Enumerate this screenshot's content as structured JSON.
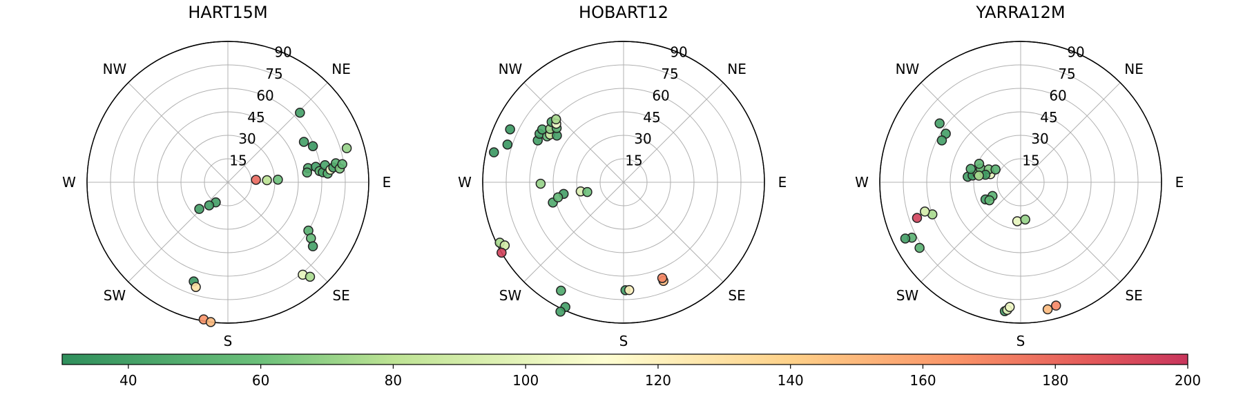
{
  "chart_data": {
    "type": "scatter",
    "projection": "polar",
    "radial_ticks": [
      "15",
      "30",
      "45",
      "60",
      "75",
      "90"
    ],
    "compass_labels": {
      "N": "",
      "NE": "NE",
      "E": "E",
      "SE": "SE",
      "S": "S",
      "SW": "SW",
      "W": "W",
      "NW": "NW"
    },
    "colormap": {
      "name": "RdYlGn_r",
      "min": 30,
      "max": 200,
      "ticks": [
        "40",
        "60",
        "80",
        "100",
        "120",
        "140",
        "160",
        "180",
        "200"
      ],
      "tick_values": [
        40,
        60,
        80,
        100,
        120,
        140,
        160,
        180,
        200
      ],
      "stops": [
        {
          "v": 30,
          "color": "#2f8f5c"
        },
        {
          "v": 60,
          "color": "#6cc07a"
        },
        {
          "v": 80,
          "color": "#bde394"
        },
        {
          "v": 112,
          "color": "#fefed2"
        },
        {
          "v": 140,
          "color": "#fed189"
        },
        {
          "v": 165,
          "color": "#fa9468"
        },
        {
          "v": 185,
          "color": "#e45a5a"
        },
        {
          "v": 200,
          "color": "#c8355c"
        }
      ]
    },
    "panels": [
      {
        "title": "HART15M",
        "points": [
          {
            "az": 80,
            "el": 52,
            "v": 45
          },
          {
            "az": 83,
            "el": 51,
            "v": 48
          },
          {
            "az": 80,
            "el": 57,
            "v": 40
          },
          {
            "az": 83,
            "el": 59,
            "v": 55
          },
          {
            "az": 84,
            "el": 61,
            "v": 45
          },
          {
            "az": 80,
            "el": 63,
            "v": 42
          },
          {
            "az": 85,
            "el": 64,
            "v": 50
          },
          {
            "az": 83,
            "el": 66,
            "v": 108
          },
          {
            "az": 82,
            "el": 68,
            "v": 40
          },
          {
            "az": 80,
            "el": 70,
            "v": 50
          },
          {
            "az": 83,
            "el": 72,
            "v": 65
          },
          {
            "az": 81,
            "el": 74,
            "v": 55
          },
          {
            "az": 74,
            "el": 79,
            "v": 70
          },
          {
            "az": 67,
            "el": 59,
            "v": 35
          },
          {
            "az": 62,
            "el": 55,
            "v": 40
          },
          {
            "az": 46,
            "el": 64,
            "v": 40
          },
          {
            "az": 85,
            "el": 18,
            "v": 180
          },
          {
            "az": 87,
            "el": 25,
            "v": 80
          },
          {
            "az": 87,
            "el": 32,
            "v": 60
          },
          {
            "az": 121,
            "el": 60,
            "v": 50
          },
          {
            "az": 124,
            "el": 64,
            "v": 55
          },
          {
            "az": 127,
            "el": 68,
            "v": 40
          },
          {
            "az": 141,
            "el": 76,
            "v": 100
          },
          {
            "az": 139,
            "el": 80,
            "v": 75
          },
          {
            "az": 211,
            "el": 15,
            "v": 40
          },
          {
            "az": 219,
            "el": 19,
            "v": 40
          },
          {
            "az": 227,
            "el": 25,
            "v": 40
          },
          {
            "az": 199,
            "el": 67,
            "v": 35
          },
          {
            "az": 197,
            "el": 70,
            "v": 130
          },
          {
            "az": 190,
            "el": 89,
            "v": 165
          },
          {
            "az": 187,
            "el": 90,
            "v": 150
          }
        ]
      },
      {
        "title": "HOBART12",
        "points": [
          {
            "az": 295,
            "el": 80,
            "v": 35
          },
          {
            "az": 283,
            "el": 85,
            "v": 35
          },
          {
            "az": 288,
            "el": 78,
            "v": 35
          },
          {
            "az": 296,
            "el": 61,
            "v": 40
          },
          {
            "az": 300,
            "el": 62,
            "v": 40
          },
          {
            "az": 301,
            "el": 57,
            "v": 55
          },
          {
            "az": 303,
            "el": 56,
            "v": 90
          },
          {
            "az": 303,
            "el": 62,
            "v": 45
          },
          {
            "az": 305,
            "el": 52,
            "v": 40
          },
          {
            "az": 306,
            "el": 58,
            "v": 70
          },
          {
            "az": 309,
            "el": 55,
            "v": 50
          },
          {
            "az": 310,
            "el": 60,
            "v": 45
          },
          {
            "az": 311,
            "el": 57,
            "v": 110
          },
          {
            "az": 313,
            "el": 59,
            "v": 75
          },
          {
            "az": 254,
            "el": 47,
            "v": 45
          },
          {
            "az": 259,
            "el": 39,
            "v": 40
          },
          {
            "az": 257,
            "el": 43,
            "v": 55
          },
          {
            "az": 258,
            "el": 28,
            "v": 95
          },
          {
            "az": 255,
            "el": 24,
            "v": 60
          },
          {
            "az": 269,
            "el": 53,
            "v": 70
          },
          {
            "az": 244,
            "el": 88,
            "v": 75
          },
          {
            "az": 242,
            "el": 86,
            "v": 90
          },
          {
            "az": 240,
            "el": 90,
            "v": 195
          },
          {
            "az": 210,
            "el": 80,
            "v": 45
          },
          {
            "az": 205,
            "el": 88,
            "v": 40
          },
          {
            "az": 206,
            "el": 92,
            "v": 40
          },
          {
            "az": 179,
            "el": 69,
            "v": 40
          },
          {
            "az": 177,
            "el": 69,
            "v": 120
          },
          {
            "az": 158,
            "el": 68,
            "v": 150
          },
          {
            "az": 158,
            "el": 66,
            "v": 170
          }
        ]
      },
      {
        "title": "YARRA12M",
        "points": [
          {
            "az": 306,
            "el": 64,
            "v": 40
          },
          {
            "az": 303,
            "el": 57,
            "v": 40
          },
          {
            "az": 298,
            "el": 57,
            "v": 40
          },
          {
            "az": 276,
            "el": 34,
            "v": 40
          },
          {
            "az": 278,
            "el": 31,
            "v": 40
          },
          {
            "az": 281,
            "el": 28,
            "v": 60
          },
          {
            "az": 284,
            "el": 24,
            "v": 45
          },
          {
            "az": 285,
            "el": 20,
            "v": 100
          },
          {
            "az": 289,
            "el": 27,
            "v": 60
          },
          {
            "az": 292,
            "el": 22,
            "v": 65
          },
          {
            "az": 294,
            "el": 29,
            "v": 55
          },
          {
            "az": 297,
            "el": 18,
            "v": 50
          },
          {
            "az": 285,
            "el": 33,
            "v": 45
          },
          {
            "az": 282,
            "el": 23,
            "v": 40
          },
          {
            "az": 279,
            "el": 27,
            "v": 75
          },
          {
            "az": 250,
            "el": 60,
            "v": 75
          },
          {
            "az": 253,
            "el": 64,
            "v": 90
          },
          {
            "az": 251,
            "el": 70,
            "v": 195
          },
          {
            "az": 243,
            "el": 78,
            "v": 50
          },
          {
            "az": 244,
            "el": 82,
            "v": 40
          },
          {
            "az": 237,
            "el": 77,
            "v": 50
          },
          {
            "az": 244,
            "el": 20,
            "v": 50
          },
          {
            "az": 244,
            "el": 25,
            "v": 40
          },
          {
            "az": 240,
            "el": 23,
            "v": 55
          },
          {
            "az": 185,
            "el": 25,
            "v": 100
          },
          {
            "az": 173,
            "el": 24,
            "v": 70
          },
          {
            "az": 187,
            "el": 83,
            "v": 40
          },
          {
            "az": 186,
            "el": 82,
            "v": 100
          },
          {
            "az": 185,
            "el": 80,
            "v": 105
          },
          {
            "az": 168,
            "el": 83,
            "v": 150
          },
          {
            "az": 164,
            "el": 82,
            "v": 170
          }
        ]
      }
    ]
  }
}
